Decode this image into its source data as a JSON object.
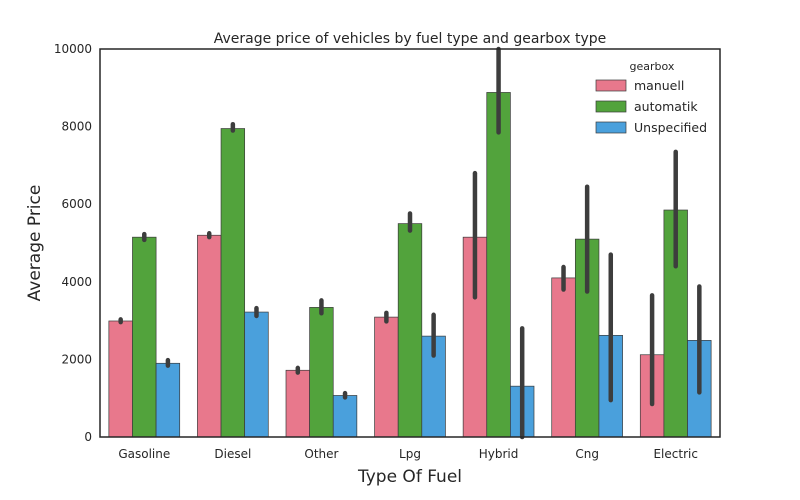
{
  "chart_data": {
    "type": "bar",
    "title": "Average price of vehicles by fuel type and gearbox type",
    "xlabel": "Type Of Fuel",
    "ylabel": "Average Price",
    "ylim": [
      0,
      10000
    ],
    "yticks": [
      0,
      2000,
      4000,
      6000,
      8000,
      10000
    ],
    "grid": false,
    "legend": {
      "title": "gearbox",
      "position": "top-right"
    },
    "categories": [
      "Gasoline",
      "Diesel",
      "Other",
      "Lpg",
      "Hybrid",
      "Cng",
      "Electric"
    ],
    "series": [
      {
        "name": "manuell",
        "color": "#e8788c",
        "values": [
          2990,
          5200,
          1720,
          3090,
          5150,
          4100,
          2120
        ],
        "ci": [
          [
            2960,
            3030
          ],
          [
            5150,
            5250
          ],
          [
            1660,
            1780
          ],
          [
            2980,
            3200
          ],
          [
            3600,
            6800
          ],
          [
            3800,
            4380
          ],
          [
            850,
            3650
          ]
        ]
      },
      {
        "name": "automatik",
        "color": "#52a33c",
        "values": [
          5150,
          7950,
          3340,
          5500,
          8880,
          5100,
          5850
        ],
        "ci": [
          [
            5080,
            5230
          ],
          [
            7900,
            8060
          ],
          [
            3190,
            3520
          ],
          [
            5320,
            5760
          ],
          [
            7850,
            10300
          ],
          [
            3750,
            6450
          ],
          [
            4400,
            7350
          ]
        ]
      },
      {
        "name": "Unspecified",
        "color": "#4aa0dc",
        "values": [
          1900,
          3220,
          1070,
          2600,
          1310,
          2620,
          2490
        ],
        "ci": [
          [
            1840,
            1980
          ],
          [
            3120,
            3320
          ],
          [
            1020,
            1130
          ],
          [
            2100,
            3150
          ],
          [
            0,
            2800
          ],
          [
            950,
            4700
          ],
          [
            1150,
            3880
          ]
        ]
      }
    ]
  }
}
